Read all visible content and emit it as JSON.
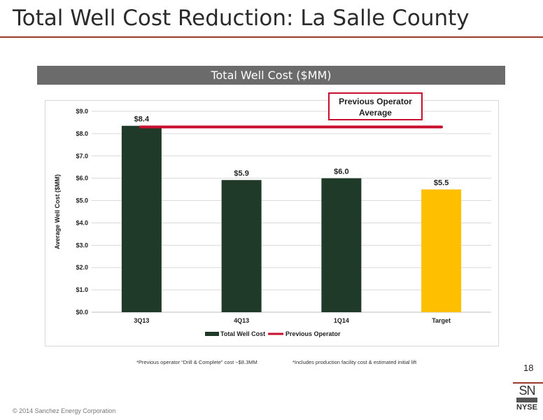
{
  "slide": {
    "title": "Total Well Cost Reduction: La Salle County",
    "page_number": "18",
    "copyright": "© 2014 Sanchez Energy Corporation",
    "logo_text_top": "SN",
    "logo_text_bottom": "NYSE"
  },
  "chart_banner": "Total Well Cost ($MM)",
  "callout": {
    "line1": "Previous Operator",
    "line2": "Average"
  },
  "footnotes": {
    "left": "*Previous operator “Drill & Complete” cost ~$8.3MM",
    "right": "*Includes production facility cost & estimated initial lift"
  },
  "chart_data": {
    "type": "bar",
    "title": "Total Well Cost ($MM)",
    "categories": [
      "3Q13",
      "4Q13",
      "1Q14",
      "Target"
    ],
    "series": [
      {
        "name": "Total Well Cost",
        "values": [
          8.35,
          5.92,
          6.0,
          5.5
        ],
        "labels": [
          "$8.4",
          "$5.9",
          "$6.0",
          "$5.5"
        ],
        "colors": [
          "#1f3a28",
          "#1f3a28",
          "#1f3a28",
          "#fdbf00"
        ]
      },
      {
        "name": "Previous Operator",
        "type": "line",
        "value": 8.3,
        "color": "#c8102e"
      }
    ],
    "ylabel": "Average Well Cost ($MM)",
    "ylim": [
      0,
      9
    ],
    "yticks": [
      0,
      1,
      2,
      3,
      4,
      5,
      6,
      7,
      8,
      9
    ],
    "ytick_labels": [
      "$0.0",
      "$1.0",
      "$2.0",
      "$3.0",
      "$4.0",
      "$5.0",
      "$6.0",
      "$7.0",
      "$8.0",
      "$9.0"
    ],
    "grid": "horizontal",
    "legend": "bottom"
  }
}
